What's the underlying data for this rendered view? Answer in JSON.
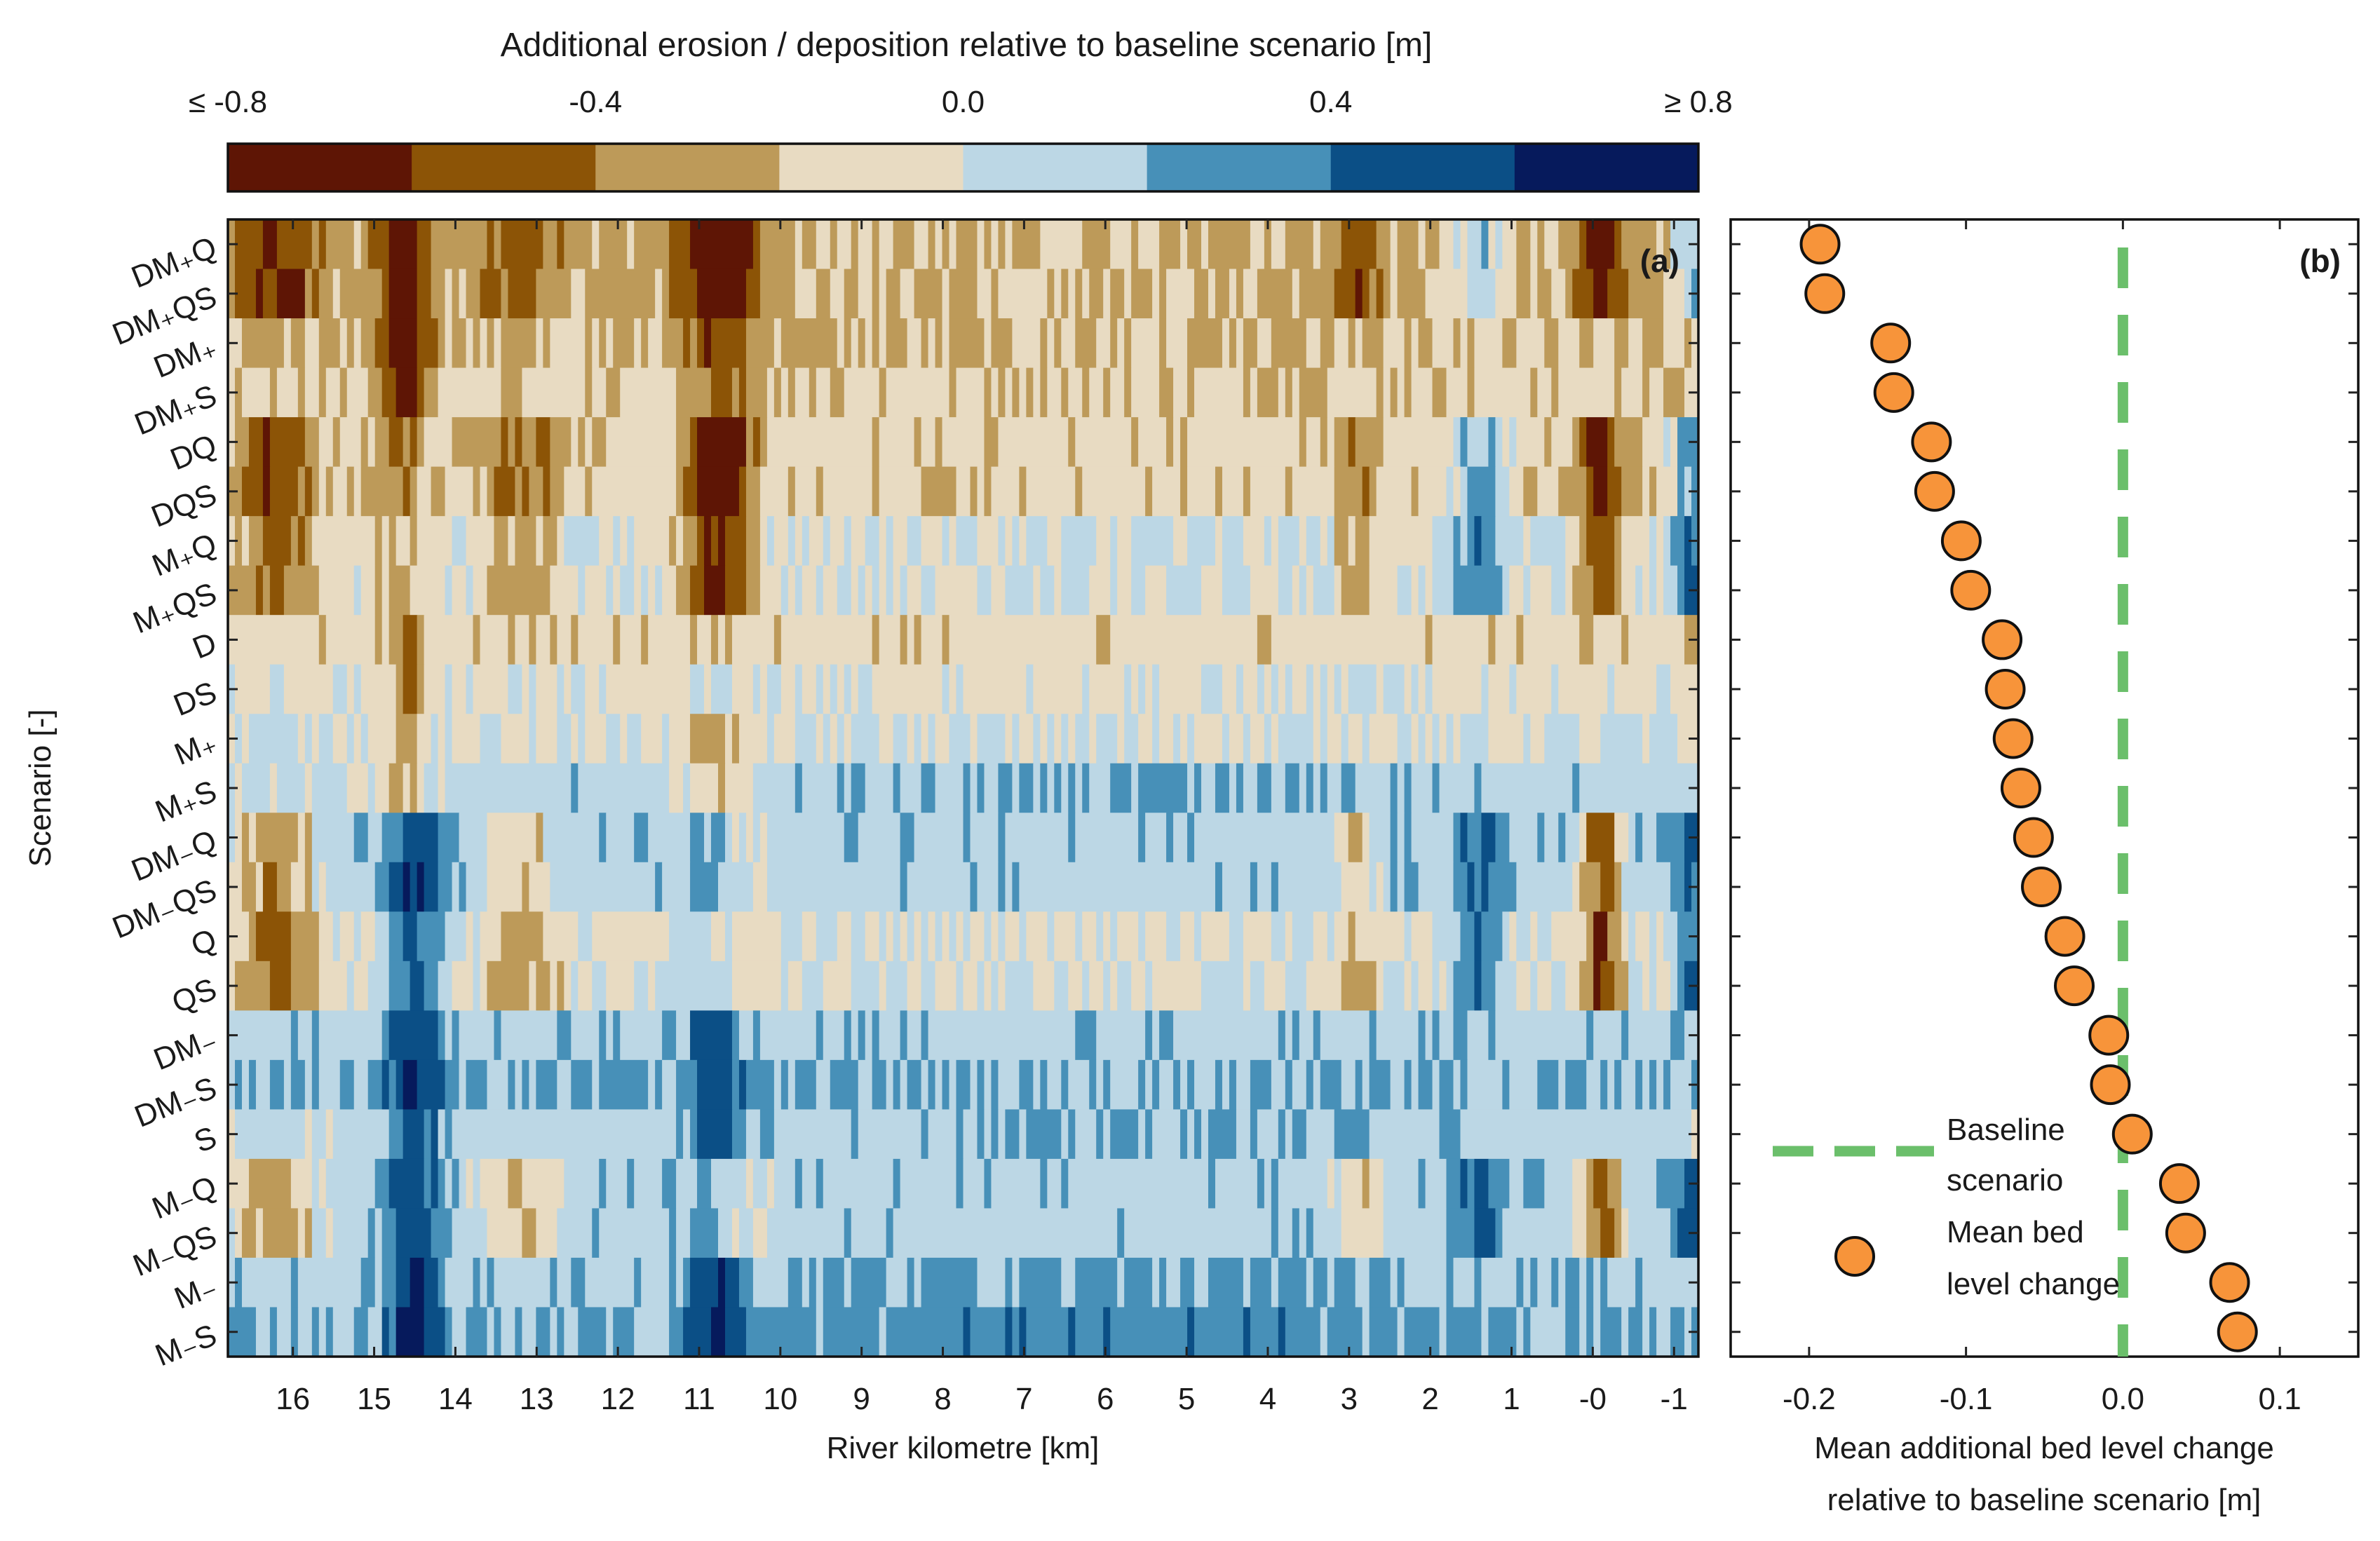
{
  "colorbar": {
    "title": "Additional erosion / deposition relative to baseline scenario [m]",
    "tick_labels": [
      "≤ -0.8",
      "-0.4",
      "0.0",
      "0.4",
      "≥ 0.8"
    ],
    "tick_values": [
      -0.8,
      -0.4,
      0.0,
      0.4,
      0.8
    ],
    "colors": [
      "#5e1505",
      "#8c5406",
      "#bd9a59",
      "#e8dbc2",
      "#bcd7e5",
      "#4790b8",
      "#0b4f86",
      "#061a5c"
    ]
  },
  "chart_data": [
    {
      "type": "heatmap",
      "panel_label": "(a)",
      "xlabel": "River kilometre [km]",
      "ylabel": "Scenario [-]",
      "x_tick_labels": [
        "16",
        "15",
        "14",
        "13",
        "12",
        "11",
        "10",
        "9",
        "8",
        "7",
        "6",
        "5",
        "4",
        "3",
        "2",
        "1",
        "-0",
        "-1"
      ],
      "x_ticks": [
        16,
        15,
        14,
        13,
        12,
        11,
        10,
        9,
        8,
        7,
        6,
        5,
        4,
        3,
        2,
        1,
        0,
        -1
      ],
      "xlim": [
        16.8,
        -1.3
      ],
      "scenarios": [
        "DM₊Q",
        "DM₊QS",
        "DM₊",
        "DM₊S",
        "DQ",
        "DQS",
        "M₊Q",
        "M₊QS",
        "D",
        "DS",
        "M₊",
        "M₊S",
        "DM₋Q",
        "DM₋QS",
        "Q",
        "QS",
        "DM₋",
        "DM₋S",
        "S",
        "M₋Q",
        "M₋QS",
        "M₋",
        "M₋S"
      ],
      "clim": [
        -0.8,
        0.8
      ]
    },
    {
      "type": "scatter",
      "panel_label": "(b)",
      "xlabel": "Mean additional bed level change relative to baseline scenario [m]",
      "x_tick_labels": [
        "-0.2",
        "-0.1",
        "0.0",
        "0.1"
      ],
      "x_ticks": [
        -0.2,
        -0.1,
        0.0,
        0.1
      ],
      "xlim": [
        -0.25,
        0.15
      ],
      "marker_color": "#f7943a",
      "baseline_color": "#6bbf6b",
      "baseline_x": 0.0,
      "values": [
        -0.193,
        -0.19,
        -0.148,
        -0.146,
        -0.122,
        -0.12,
        -0.103,
        -0.097,
        -0.077,
        -0.075,
        -0.07,
        -0.065,
        -0.057,
        -0.052,
        -0.037,
        -0.031,
        -0.009,
        -0.008,
        0.006,
        0.036,
        0.04,
        0.068,
        0.073
      ],
      "legend": {
        "baseline_label_1": "Baseline",
        "baseline_label_2": "scenario",
        "mean_label_1": "Mean bed",
        "mean_label_2": "level change"
      }
    }
  ]
}
